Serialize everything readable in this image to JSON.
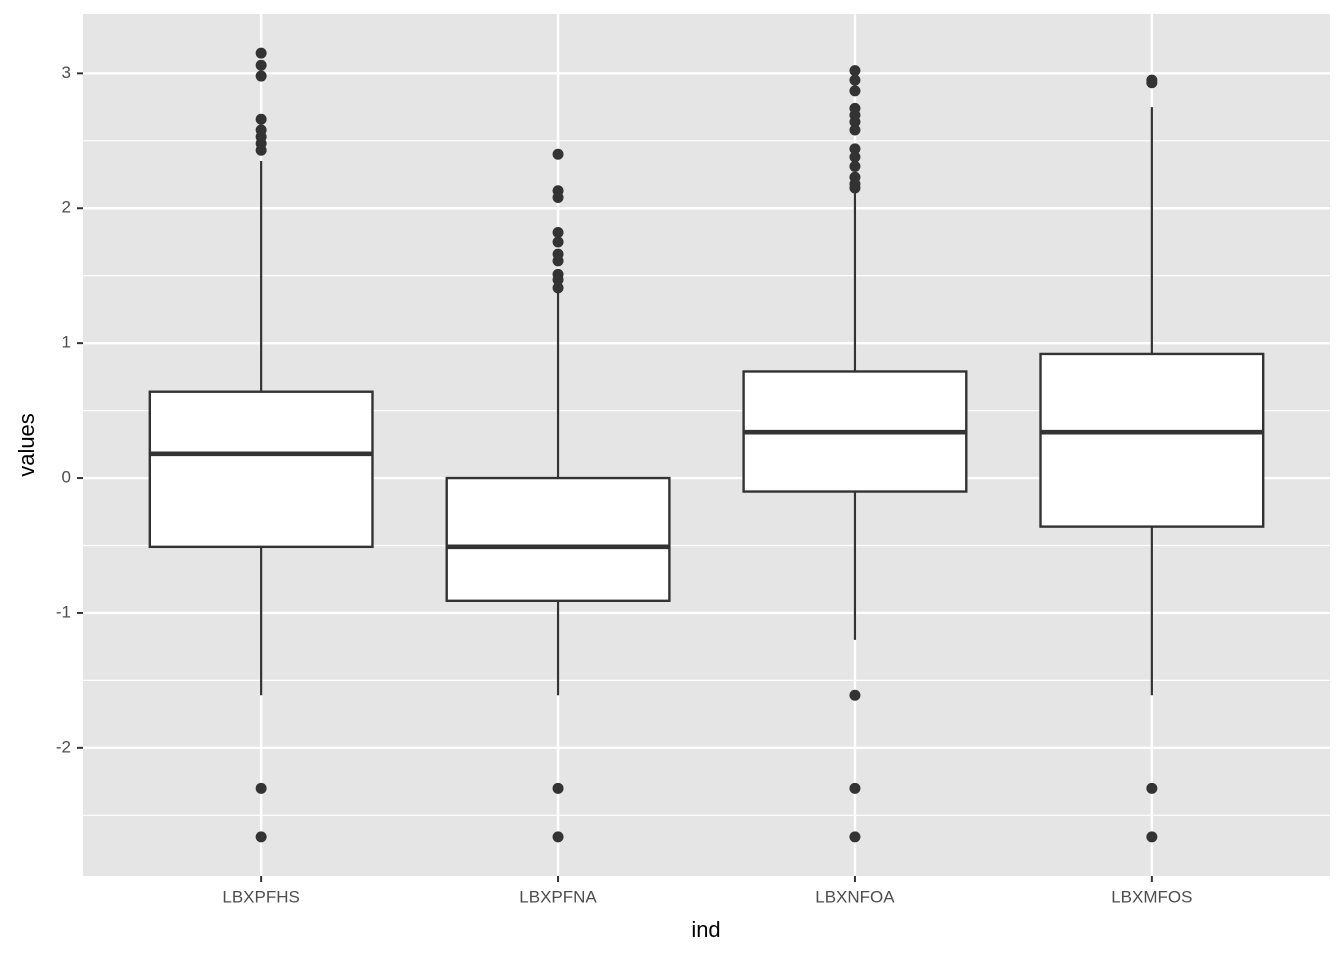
{
  "chart_data": {
    "type": "boxplot",
    "x_label": "ind",
    "y_label": "values",
    "categories": [
      "LBXPFHS",
      "LBXPFNA",
      "LBXNFOA",
      "LBXMFOS"
    ],
    "boxes": [
      {
        "low": -1.61,
        "q1": -0.51,
        "median": 0.18,
        "q3": 0.64,
        "high": 2.35,
        "outliers": [
          3.15,
          3.06,
          2.98,
          2.66,
          2.58,
          2.53,
          2.48,
          2.43,
          -2.3,
          -2.66
        ]
      },
      {
        "low": -1.61,
        "q1": -0.91,
        "median": -0.51,
        "q3": 0.0,
        "high": 1.38,
        "outliers": [
          2.4,
          2.13,
          2.08,
          1.82,
          1.75,
          1.66,
          1.61,
          1.51,
          1.47,
          1.41,
          -2.3,
          -2.66
        ]
      },
      {
        "low": -1.2,
        "q1": -0.1,
        "median": 0.34,
        "q3": 0.79,
        "high": 2.14,
        "outliers": [
          3.02,
          2.95,
          2.87,
          2.74,
          2.69,
          2.64,
          2.58,
          2.44,
          2.38,
          2.31,
          2.23,
          2.18,
          2.15,
          -1.61,
          -2.3,
          -2.66
        ]
      },
      {
        "low": -1.61,
        "q1": -0.36,
        "median": 0.34,
        "q3": 0.92,
        "high": 2.75,
        "outliers": [
          2.95,
          2.93,
          -2.3,
          -2.66
        ]
      }
    ],
    "ylim": [
      -2.95,
      3.44
    ],
    "yticks": [
      -2,
      -1,
      0,
      1,
      2,
      3
    ],
    "grid": true,
    "box_fill": "#ffffff",
    "line_color": "#333333",
    "panel_color": "#e5e5e5"
  }
}
